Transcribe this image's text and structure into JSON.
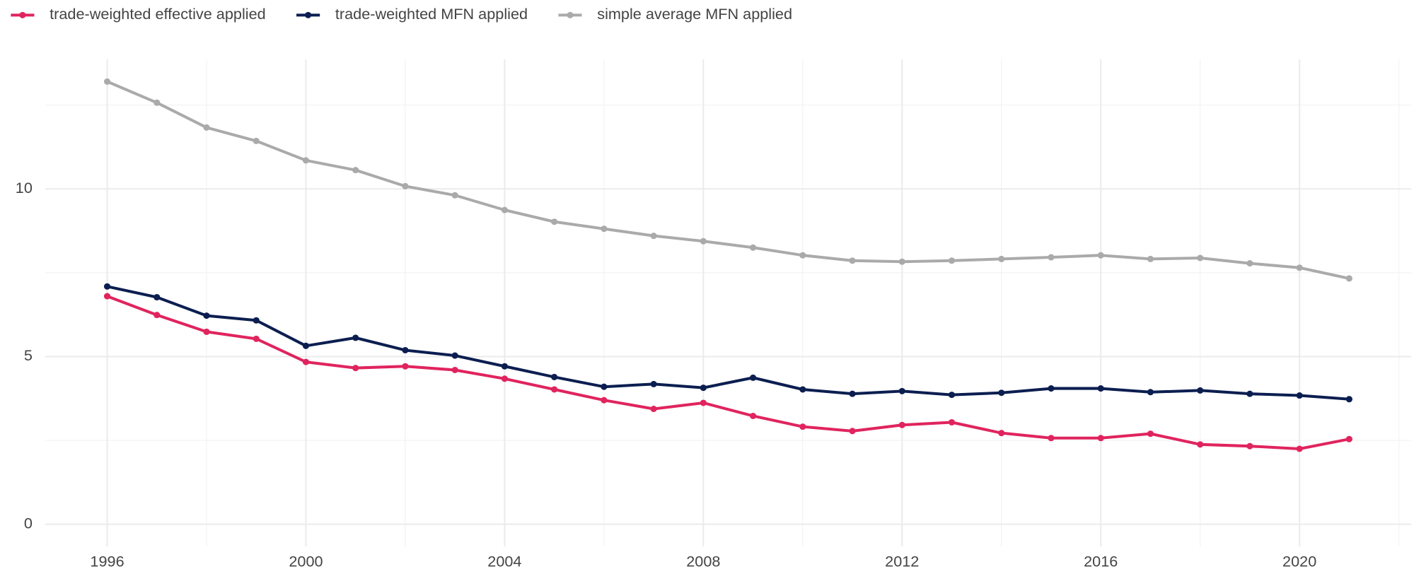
{
  "chart_data": {
    "type": "line",
    "x": [
      1996,
      1997,
      1998,
      1999,
      2000,
      2001,
      2002,
      2003,
      2004,
      2005,
      2006,
      2007,
      2008,
      2009,
      2010,
      2011,
      2012,
      2013,
      2014,
      2015,
      2016,
      2017,
      2018,
      2019,
      2020,
      2021
    ],
    "series": [
      {
        "name": "trade-weighted effective applied",
        "color": "#e0245e",
        "values": [
          6.8,
          6.24,
          5.74,
          5.53,
          4.84,
          4.66,
          4.71,
          4.6,
          4.34,
          4.02,
          3.7,
          3.44,
          3.62,
          3.23,
          2.91,
          2.78,
          2.96,
          3.04,
          2.72,
          2.57,
          2.57,
          2.7,
          2.38,
          2.33,
          2.25,
          2.54
        ]
      },
      {
        "name": "trade-weighted MFN applied",
        "color": "#0c1e50",
        "values": [
          7.09,
          6.77,
          6.22,
          6.08,
          5.32,
          5.56,
          5.19,
          5.03,
          4.71,
          4.39,
          4.1,
          4.18,
          4.07,
          4.37,
          4.02,
          3.89,
          3.97,
          3.86,
          3.92,
          4.05,
          4.05,
          3.94,
          3.99,
          3.89,
          3.84,
          3.73
        ]
      },
      {
        "name": "simple average MFN applied",
        "color": "#aaaaaa",
        "values": [
          13.2,
          12.57,
          11.83,
          11.43,
          10.85,
          10.56,
          10.08,
          9.81,
          9.37,
          9.02,
          8.81,
          8.6,
          8.44,
          8.25,
          8.02,
          7.86,
          7.83,
          7.86,
          7.91,
          7.96,
          8.02,
          7.91,
          7.94,
          7.78,
          7.65,
          7.33
        ]
      }
    ],
    "xlim": [
      1994.75,
      2022.25
    ],
    "xticks": [
      1996,
      2000,
      2004,
      2008,
      2012,
      2016,
      2020
    ],
    "ylim": [
      -0.66,
      13.86
    ],
    "yticks": [
      0,
      5,
      10
    ],
    "grid": true,
    "legend": "top"
  }
}
